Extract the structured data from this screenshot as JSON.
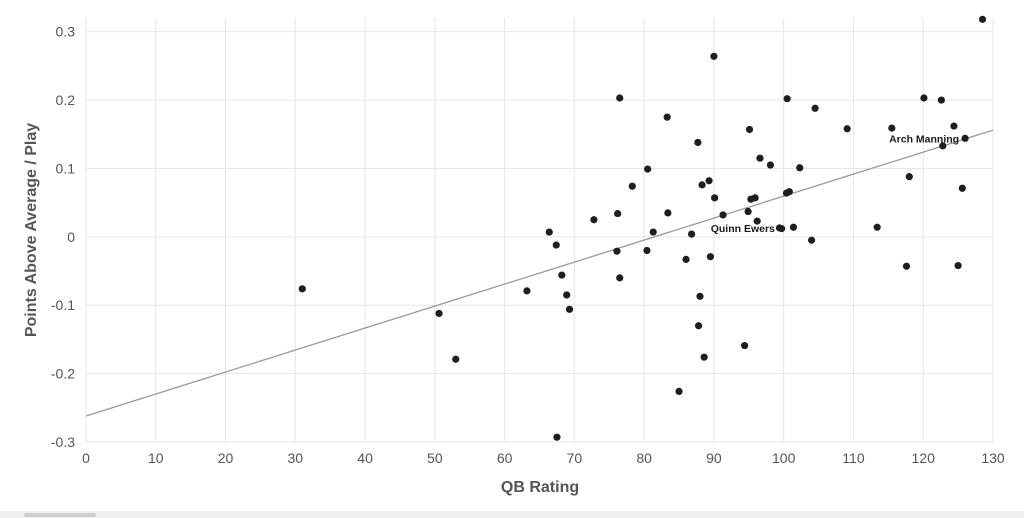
{
  "chart_data": {
    "type": "scatter",
    "title": "",
    "xlabel": "QB Rating",
    "ylabel": "Points Above Average / Play",
    "xlim": [
      0,
      130
    ],
    "ylim": [
      -0.3,
      0.32
    ],
    "xticks": [
      0,
      10,
      20,
      30,
      40,
      50,
      60,
      70,
      80,
      90,
      100,
      110,
      120,
      130
    ],
    "yticks": [
      -0.3,
      -0.2,
      -0.1,
      0,
      0.1,
      0.2,
      0.3
    ],
    "ytick_labels": [
      "-0.3",
      "-0.2",
      "-0.1",
      "0",
      "0.1",
      "0.2",
      "0.3"
    ],
    "grid": true,
    "trendline": {
      "x": [
        0,
        130
      ],
      "y": [
        -0.262,
        0.156
      ]
    },
    "points": [
      [
        31,
        -0.076
      ],
      [
        50.6,
        -0.112
      ],
      [
        53,
        -0.179
      ],
      [
        63.2,
        -0.079
      ],
      [
        66.4,
        0.007
      ],
      [
        67.4,
        -0.012
      ],
      [
        68.2,
        -0.056
      ],
      [
        68.9,
        -0.085
      ],
      [
        69.3,
        -0.106
      ],
      [
        67.5,
        -0.293
      ],
      [
        72.8,
        0.025
      ],
      [
        76.1,
        -0.021
      ],
      [
        76.2,
        0.034
      ],
      [
        76.5,
        -0.06
      ],
      [
        76.5,
        0.203
      ],
      [
        78.3,
        0.074
      ],
      [
        80.4,
        -0.02
      ],
      [
        80.5,
        0.099
      ],
      [
        81.3,
        0.007
      ],
      [
        83.3,
        0.175
      ],
      [
        83.4,
        0.035
      ],
      [
        85,
        -0.226
      ],
      [
        86,
        -0.033
      ],
      [
        86.8,
        0.004
      ],
      [
        87.7,
        0.138
      ],
      [
        87.8,
        -0.13
      ],
      [
        88,
        -0.087
      ],
      [
        88.3,
        0.076
      ],
      [
        88.6,
        -0.176
      ],
      [
        89.3,
        0.082
      ],
      [
        89.5,
        -0.029
      ],
      [
        90.1,
        0.057
      ],
      [
        90,
        0.264
      ],
      [
        91.3,
        0.032
      ],
      [
        94.4,
        -0.159
      ],
      [
        94.9,
        0.037
      ],
      [
        95.1,
        0.157
      ],
      [
        95.3,
        0.055
      ],
      [
        95.9,
        0.057
      ],
      [
        96.2,
        0.023
      ],
      [
        96.6,
        0.115
      ],
      [
        98.1,
        0.105
      ],
      [
        99.4,
        0.013
      ],
      [
        99.7,
        0.012
      ],
      [
        100.4,
        0.064
      ],
      [
        100.5,
        0.202
      ],
      [
        100.8,
        0.066
      ],
      [
        101.4,
        0.014
      ],
      [
        102.3,
        0.101
      ],
      [
        104,
        -0.005
      ],
      [
        104.5,
        0.188
      ],
      [
        109.1,
        0.158
      ],
      [
        113.4,
        0.014
      ],
      [
        115.5,
        0.159
      ],
      [
        117.6,
        -0.043
      ],
      [
        118,
        0.088
      ],
      [
        120.1,
        0.203
      ],
      [
        122.6,
        0.2
      ],
      [
        122.8,
        0.133
      ],
      [
        124.4,
        0.162
      ],
      [
        125,
        -0.042
      ],
      [
        125.6,
        0.071
      ],
      [
        126,
        0.144
      ],
      [
        128.5,
        0.318
      ]
    ],
    "annotations": [
      {
        "text": "Arch Manning",
        "x": 126,
        "y": 0.144
      },
      {
        "text": "Quinn Ewers",
        "x": 99.6,
        "y": 0.013
      }
    ]
  }
}
